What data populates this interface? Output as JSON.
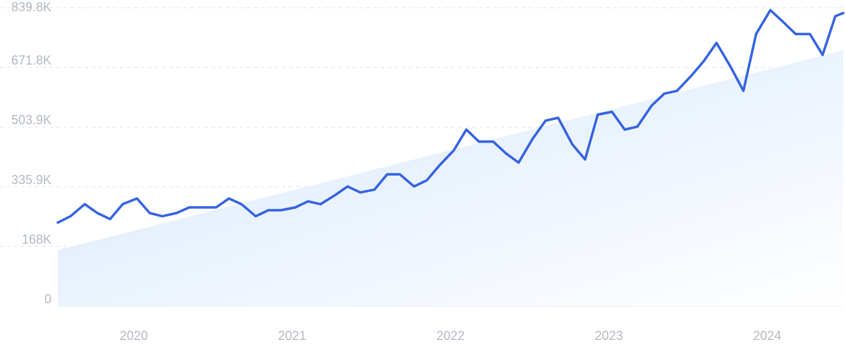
{
  "chart_data": {
    "type": "line",
    "y_ticks": [
      {
        "value": 0,
        "label": "0"
      },
      {
        "value": 168000,
        "label": "168K"
      },
      {
        "value": 335900,
        "label": "335.9K"
      },
      {
        "value": 503900,
        "label": "503.9K"
      },
      {
        "value": 671800,
        "label": "671.8K"
      },
      {
        "value": 839800,
        "label": "839.8K"
      }
    ],
    "x_ticks": [
      {
        "value": 2020,
        "label": "2020"
      },
      {
        "value": 2021,
        "label": "2021"
      },
      {
        "value": 2022,
        "label": "2022"
      },
      {
        "value": 2023,
        "label": "2023"
      },
      {
        "value": 2024,
        "label": "2024"
      }
    ],
    "xlim": [
      2019.52,
      2024.48
    ],
    "ylim": [
      0,
      839800
    ],
    "grid": true,
    "series": [
      {
        "color": "#3563e0",
        "x": [
          2019.52,
          2019.6,
          2019.69,
          2019.77,
          2019.85,
          2019.93,
          2020.02,
          2020.1,
          2020.18,
          2020.27,
          2020.35,
          2020.43,
          2020.52,
          2020.6,
          2020.68,
          2020.77,
          2020.85,
          2020.93,
          2021.02,
          2021.1,
          2021.18,
          2021.27,
          2021.35,
          2021.43,
          2021.52,
          2021.6,
          2021.68,
          2021.77,
          2021.85,
          2021.93,
          2022.02,
          2022.1,
          2022.18,
          2022.27,
          2022.35,
          2022.43,
          2022.52,
          2022.6,
          2022.68,
          2022.77,
          2022.85,
          2022.93,
          2023.02,
          2023.1,
          2023.18,
          2023.27,
          2023.35,
          2023.43,
          2023.52,
          2023.6,
          2023.68,
          2023.77,
          2023.85,
          2023.93,
          2024.02,
          2024.1,
          2024.18,
          2024.27,
          2024.35,
          2024.43,
          2024.48
        ],
        "values": [
          235000,
          253000,
          287000,
          262000,
          245000,
          287000,
          303000,
          262000,
          253000,
          262000,
          278000,
          278000,
          278000,
          303000,
          287000,
          253000,
          270000,
          270000,
          278000,
          295000,
          287000,
          312000,
          337000,
          320000,
          328000,
          371000,
          371000,
          337000,
          354000,
          396000,
          438000,
          497000,
          463000,
          463000,
          430000,
          404000,
          472000,
          522000,
          530000,
          455000,
          413000,
          539000,
          547000,
          497000,
          505000,
          564000,
          598000,
          606000,
          648000,
          690000,
          741000,
          673000,
          606000,
          766000,
          833000,
          800000,
          766000,
          766000,
          707000,
          816000,
          825000
        ]
      }
    ],
    "trend": {
      "color": "#dbeafb",
      "x": [
        2019.52,
        2024.48
      ],
      "values": [
        158000,
        720000
      ]
    }
  }
}
